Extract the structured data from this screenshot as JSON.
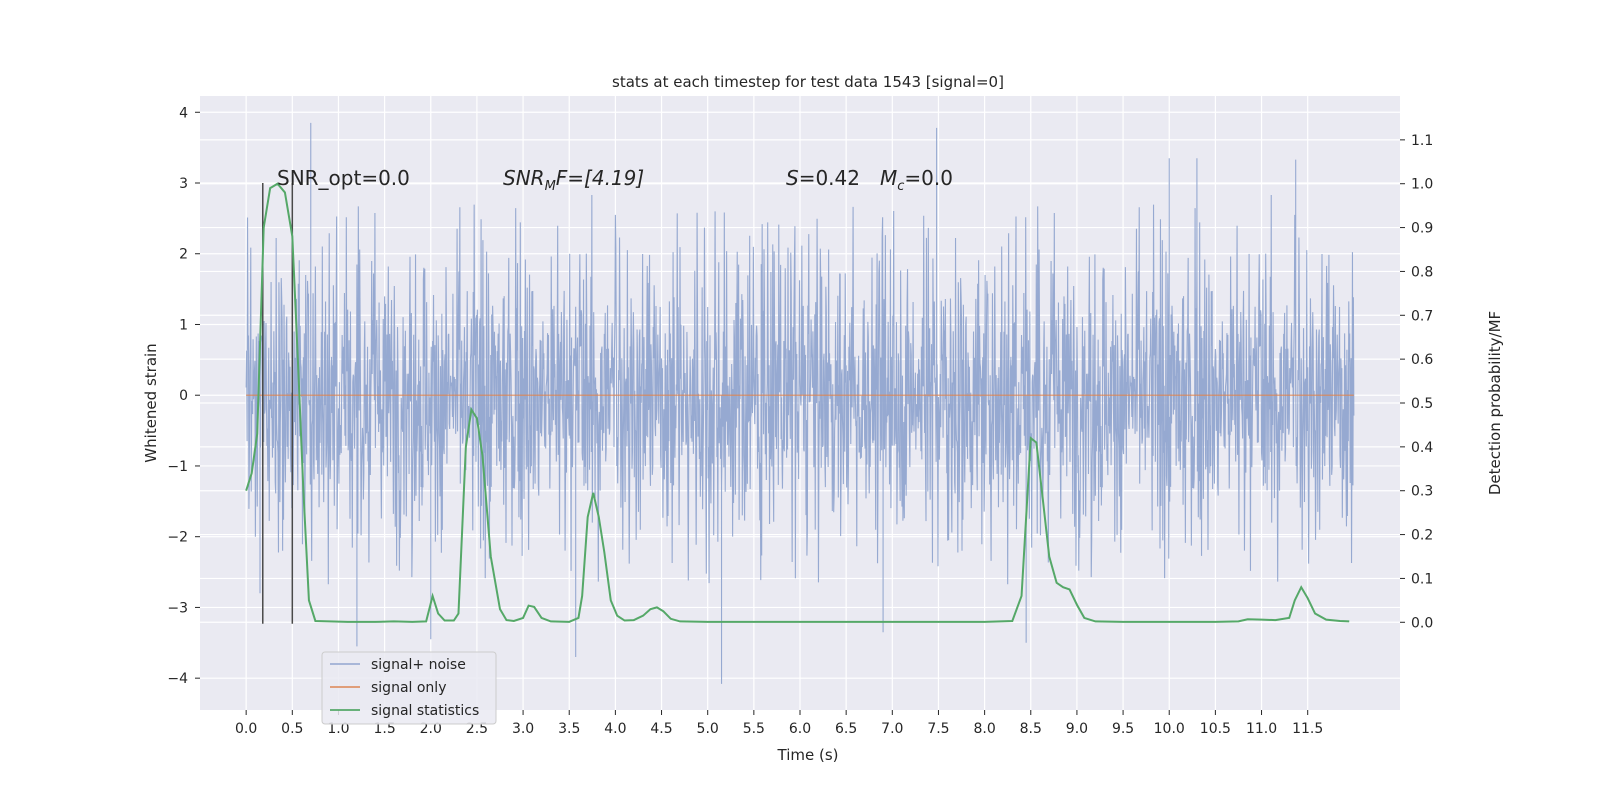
{
  "chart_data": {
    "type": "line",
    "title": "stats at each timestep for test data 1543 [signal=0]",
    "xlabel": "Time (s)",
    "ylabel": "Whitened strain",
    "ylabel_right": "Detection probability/MF",
    "xlim": [
      -0.5,
      12.5
    ],
    "ylim": [
      -4.45,
      4.23
    ],
    "ylim_right": [
      -0.2,
      1.2
    ],
    "x_ticks": [
      "0.0",
      "0.5",
      "1.0",
      "1.5",
      "2.0",
      "2.5",
      "3.0",
      "3.5",
      "4.0",
      "4.5",
      "5.0",
      "5.5",
      "6.0",
      "6.5",
      "7.0",
      "7.5",
      "8.0",
      "8.5",
      "9.0",
      "9.5",
      "10.0",
      "10.5",
      "11.0",
      "11.5"
    ],
    "y_ticks": [
      "4",
      "3",
      "2",
      "1",
      "0",
      "−1",
      "−2",
      "−3",
      "−4"
    ],
    "y_ticks_right": [
      "1.1",
      "1.0",
      "0.9",
      "0.8",
      "0.7",
      "0.6",
      "0.5",
      "0.4",
      "0.3",
      "0.2",
      "0.1",
      "0.0"
    ],
    "grid": true,
    "legend_placement": "lower-left",
    "annotations": {
      "snr_opt": "SNR_opt=0.0",
      "snr_mf_main": "SNR",
      "snr_mf_sub": "M",
      "snr_mf_rest": "F=[4.19]",
      "s_main": "S",
      "s_rest": "=0.42",
      "mc_main": "M",
      "mc_sub": "c",
      "mc_rest": "=0.0"
    },
    "vertical_markers": [
      0.18,
      0.5
    ],
    "series": [
      {
        "name": "signal+ noise",
        "color": "#91a5cf",
        "t_range": [
          0.0,
          12.0
        ],
        "envelope_typical": [
          -1.5,
          1.5
        ],
        "peaks": [
          {
            "x": 0.7,
            "y": 3.85
          },
          {
            "x": 7.48,
            "y": 3.78
          },
          {
            "x": 10.0,
            "y": 3.35
          },
          {
            "x": 10.3,
            "y": 3.35
          },
          {
            "x": 11.37,
            "y": 3.33
          },
          {
            "x": 5.15,
            "y": -4.08
          },
          {
            "x": 3.57,
            "y": -3.7
          },
          {
            "x": 1.2,
            "y": -3.55
          },
          {
            "x": 8.45,
            "y": -3.5
          },
          {
            "x": 2.0,
            "y": -3.45
          },
          {
            "x": 6.9,
            "y": -3.35
          },
          {
            "x": 0.15,
            "y": -2.8
          }
        ]
      },
      {
        "name": "signal only",
        "color": "#dd8452",
        "points": [
          [
            0.0,
            0.0
          ],
          [
            12.0,
            0.0
          ]
        ]
      },
      {
        "name": "signal statistics",
        "color": "#55a868",
        "axis": "right",
        "points": [
          [
            0.0,
            0.3
          ],
          [
            0.06,
            0.34
          ],
          [
            0.12,
            0.43
          ],
          [
            0.19,
            0.9
          ],
          [
            0.26,
            0.99
          ],
          [
            0.34,
            1.0
          ],
          [
            0.42,
            0.98
          ],
          [
            0.5,
            0.88
          ],
          [
            0.56,
            0.6
          ],
          [
            0.62,
            0.3
          ],
          [
            0.68,
            0.05
          ],
          [
            0.75,
            0.003
          ],
          [
            0.9,
            0.002
          ],
          [
            1.1,
            0.001
          ],
          [
            1.4,
            0.001
          ],
          [
            1.6,
            0.002
          ],
          [
            1.8,
            0.001
          ],
          [
            1.95,
            0.002
          ],
          [
            2.02,
            0.06
          ],
          [
            2.08,
            0.02
          ],
          [
            2.15,
            0.004
          ],
          [
            2.25,
            0.004
          ],
          [
            2.3,
            0.02
          ],
          [
            2.38,
            0.4
          ],
          [
            2.44,
            0.485
          ],
          [
            2.5,
            0.465
          ],
          [
            2.56,
            0.38
          ],
          [
            2.65,
            0.15
          ],
          [
            2.75,
            0.03
          ],
          [
            2.82,
            0.005
          ],
          [
            2.9,
            0.003
          ],
          [
            3.0,
            0.01
          ],
          [
            3.06,
            0.038
          ],
          [
            3.12,
            0.035
          ],
          [
            3.2,
            0.01
          ],
          [
            3.3,
            0.002
          ],
          [
            3.5,
            0.001
          ],
          [
            3.6,
            0.01
          ],
          [
            3.64,
            0.06
          ],
          [
            3.7,
            0.24
          ],
          [
            3.76,
            0.295
          ],
          [
            3.82,
            0.24
          ],
          [
            3.88,
            0.16
          ],
          [
            3.95,
            0.05
          ],
          [
            4.02,
            0.015
          ],
          [
            4.1,
            0.004
          ],
          [
            4.2,
            0.005
          ],
          [
            4.3,
            0.015
          ],
          [
            4.38,
            0.03
          ],
          [
            4.45,
            0.034
          ],
          [
            4.52,
            0.025
          ],
          [
            4.6,
            0.008
          ],
          [
            4.7,
            0.002
          ],
          [
            5.0,
            0.001
          ],
          [
            6.0,
            0.001
          ],
          [
            7.0,
            0.001
          ],
          [
            8.0,
            0.001
          ],
          [
            8.3,
            0.003
          ],
          [
            8.4,
            0.06
          ],
          [
            8.5,
            0.42
          ],
          [
            8.56,
            0.41
          ],
          [
            8.62,
            0.3
          ],
          [
            8.7,
            0.15
          ],
          [
            8.78,
            0.09
          ],
          [
            8.85,
            0.08
          ],
          [
            8.92,
            0.075
          ],
          [
            9.0,
            0.04
          ],
          [
            9.08,
            0.01
          ],
          [
            9.2,
            0.002
          ],
          [
            9.5,
            0.001
          ],
          [
            10.0,
            0.001
          ],
          [
            10.5,
            0.001
          ],
          [
            10.75,
            0.002
          ],
          [
            10.85,
            0.007
          ],
          [
            11.0,
            0.006
          ],
          [
            11.15,
            0.005
          ],
          [
            11.3,
            0.01
          ],
          [
            11.36,
            0.05
          ],
          [
            11.43,
            0.08
          ],
          [
            11.5,
            0.055
          ],
          [
            11.58,
            0.02
          ],
          [
            11.7,
            0.006
          ],
          [
            11.85,
            0.003
          ],
          [
            11.95,
            0.002
          ]
        ]
      }
    ]
  }
}
